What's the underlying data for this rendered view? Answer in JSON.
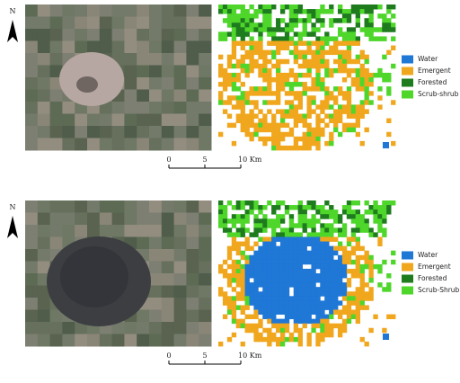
{
  "panels": [
    {
      "north": "N",
      "legend": [
        {
          "label": "Water",
          "color": "#1f77d6"
        },
        {
          "label": "Emergent",
          "color": "#f0a71e"
        },
        {
          "label": "Forested",
          "color": "#1e7b1e"
        },
        {
          "label": "Scrub-shrub",
          "color": "#4ed62b"
        }
      ],
      "scale": [
        "0",
        "5",
        "10 Km"
      ]
    },
    {
      "north": "N",
      "legend": [
        {
          "label": "Water",
          "color": "#1f77d6"
        },
        {
          "label": "Emergent",
          "color": "#f0a71e"
        },
        {
          "label": "Forested",
          "color": "#1e7b1e"
        },
        {
          "label": "Scrub-Shrub",
          "color": "#4ed62b"
        }
      ],
      "scale": [
        "0",
        "5",
        "10 Km"
      ]
    }
  ]
}
